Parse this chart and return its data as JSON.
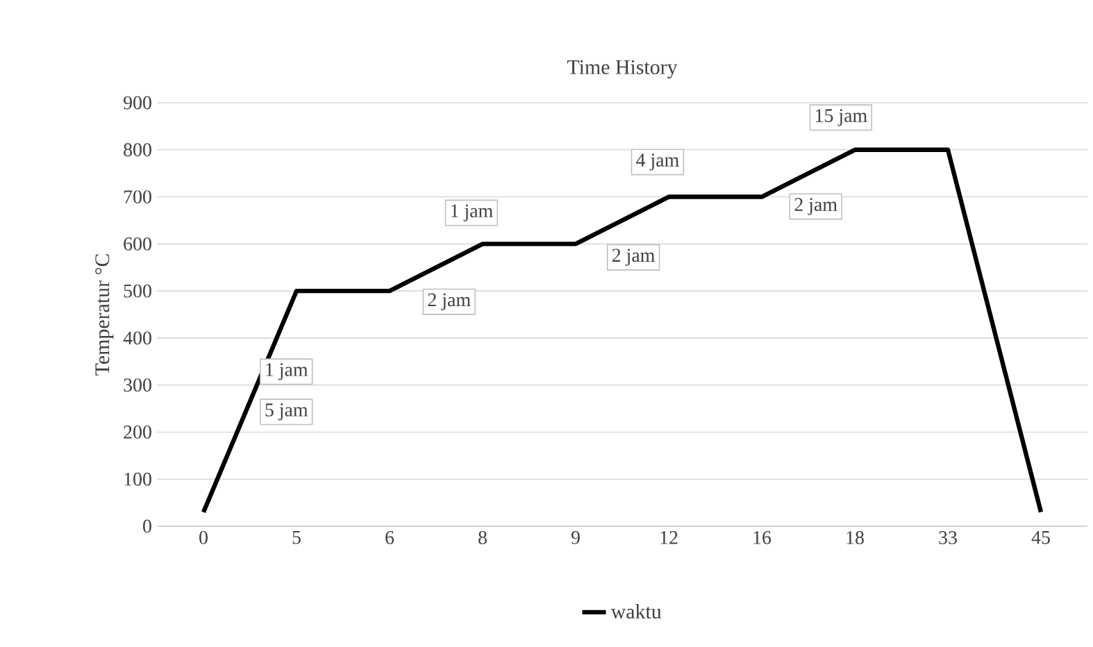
{
  "chart_data": {
    "type": "line",
    "title": "Time History",
    "ylabel": "Temperatur °C",
    "categories": [
      "0",
      "5",
      "6",
      "8",
      "9",
      "12",
      "16",
      "18",
      "33",
      "45"
    ],
    "series": [
      {
        "name": "waktu",
        "color": "#000000",
        "values": [
          30,
          500,
          500,
          600,
          600,
          700,
          700,
          800,
          800,
          30
        ]
      }
    ],
    "ylim": [
      0,
      900
    ],
    "yticks": [
      0,
      100,
      200,
      300,
      400,
      500,
      600,
      700,
      800,
      900
    ],
    "grid": "y",
    "legend": "bottom",
    "marker": "none",
    "line_style": "solid",
    "annotations": [
      "1 jam",
      "5 jam",
      "2 jam",
      "1 jam",
      "2 jam",
      "4 jam",
      "2 jam",
      "15 jam"
    ]
  }
}
